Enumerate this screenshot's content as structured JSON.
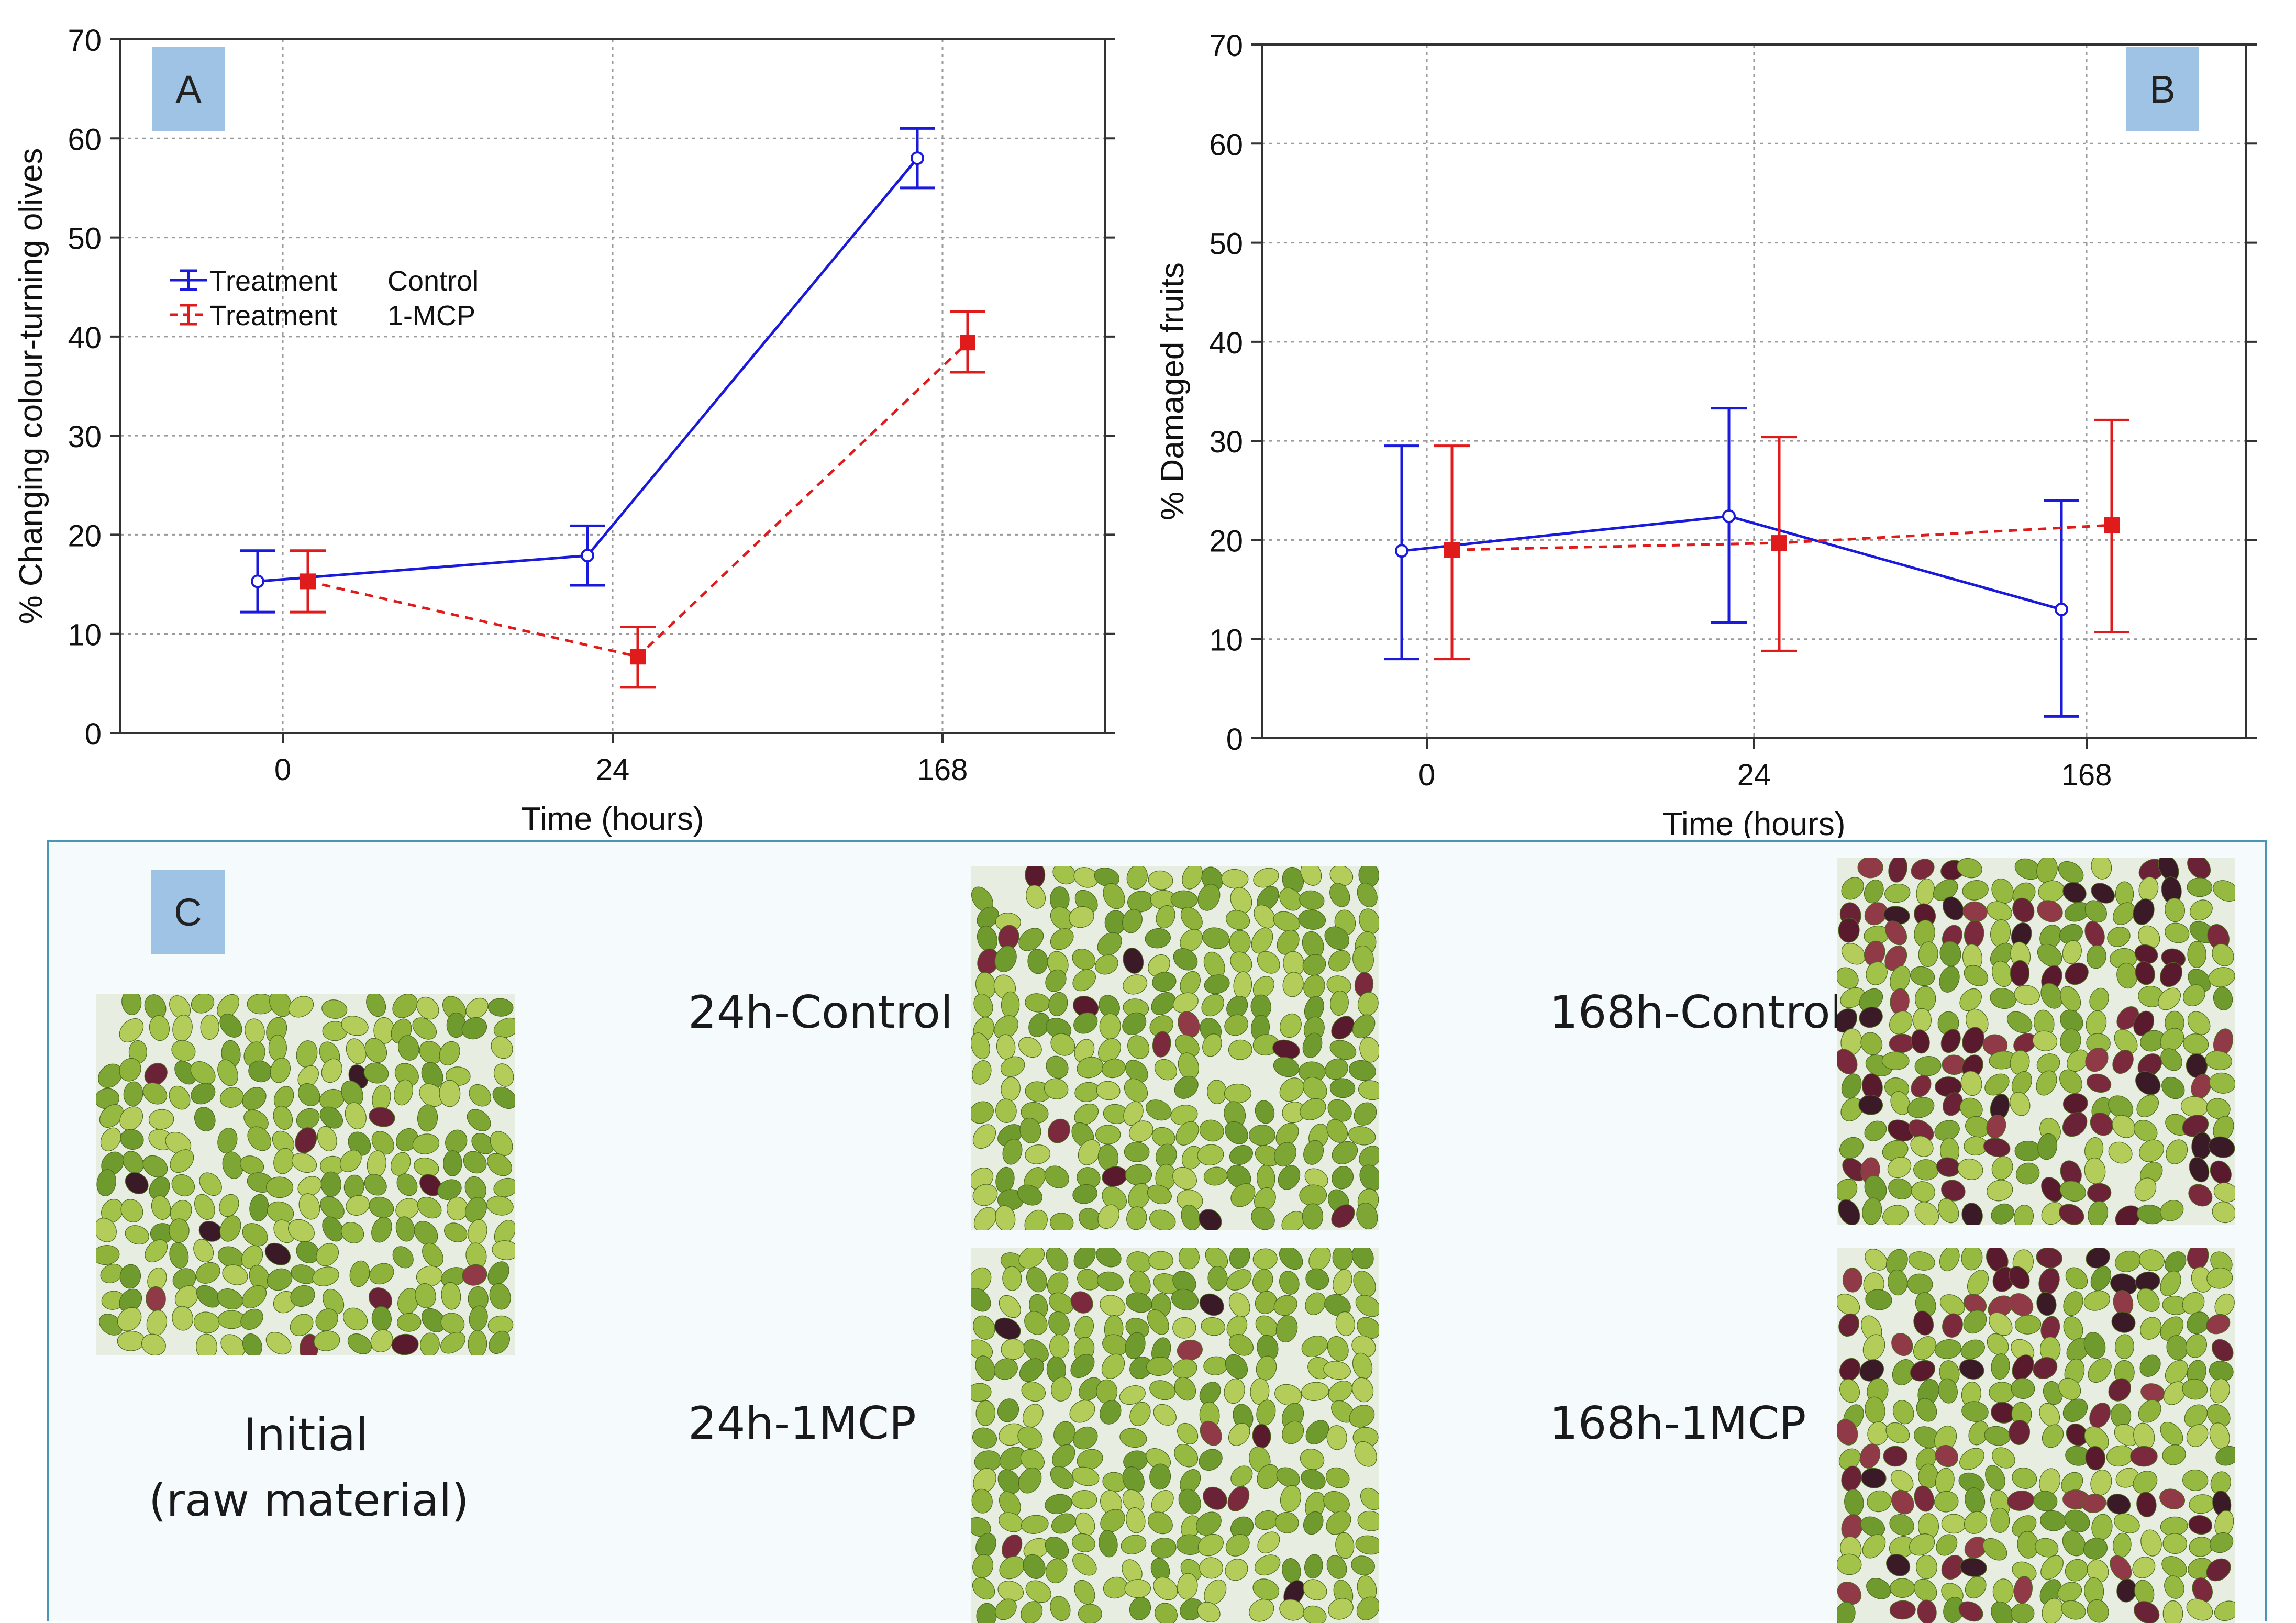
{
  "chart_data": [
    {
      "panel": "A",
      "type": "line",
      "title": "",
      "xlabel": "Time (hours)",
      "ylabel": "% Changing colour-turning olives",
      "categories": [
        "0",
        "24",
        "168"
      ],
      "ylim": [
        0,
        70
      ],
      "yticks": [
        0,
        10,
        20,
        30,
        40,
        50,
        60,
        70
      ],
      "grid": true,
      "legend_placement": "upper-left",
      "series": [
        {
          "name": "Control",
          "legend_prefix": "Treatment",
          "color": "#1a1adc",
          "line": "solid",
          "values": [
            15.3,
            17.9,
            58.0
          ],
          "err_low": [
            12.2,
            14.9,
            55.0
          ],
          "err_high": [
            18.4,
            20.9,
            61.0
          ]
        },
        {
          "name": "1-MCP",
          "legend_prefix": "Treatment",
          "color": "#e01b1b",
          "line": "dashed",
          "values": [
            15.3,
            7.7,
            39.4
          ],
          "err_low": [
            12.2,
            4.6,
            36.4
          ],
          "err_high": [
            18.4,
            10.7,
            42.5
          ]
        }
      ]
    },
    {
      "panel": "B",
      "type": "line",
      "title": "",
      "xlabel": "Time (hours)",
      "ylabel": "% Damaged fruits",
      "categories": [
        "0",
        "24",
        "168"
      ],
      "ylim": [
        0,
        70
      ],
      "yticks": [
        0,
        10,
        20,
        30,
        40,
        50,
        60,
        70
      ],
      "grid": true,
      "series": [
        {
          "name": "Control",
          "color": "#1a1adc",
          "line": "solid",
          "values": [
            18.9,
            22.4,
            13.0
          ],
          "err_low": [
            8.0,
            11.7,
            2.2
          ],
          "err_high": [
            29.5,
            33.3,
            24.0
          ]
        },
        {
          "name": "1-MCP",
          "color": "#e01b1b",
          "line": "dashed",
          "values": [
            19.0,
            19.7,
            21.5
          ],
          "err_low": [
            8.0,
            8.8,
            10.7
          ],
          "err_high": [
            29.5,
            30.4,
            32.1
          ]
        }
      ]
    }
  ],
  "panel_c": {
    "badge": "C",
    "initial_line1": "Initial",
    "initial_line2": "(raw material)",
    "label_24_control": "24h-Control",
    "label_24_mcp": "24h-1MCP",
    "label_168_control": "168h-Control",
    "label_168_mcp": "168h-1MCP"
  },
  "photos": {
    "initial": {
      "purple_fraction": 0.05
    },
    "p24_control": {
      "purple_fraction": 0.08
    },
    "p24_mcp": {
      "purple_fraction": 0.04
    },
    "p168_control": {
      "purple_fraction": 0.4
    },
    "p168_mcp": {
      "purple_fraction": 0.3
    }
  }
}
